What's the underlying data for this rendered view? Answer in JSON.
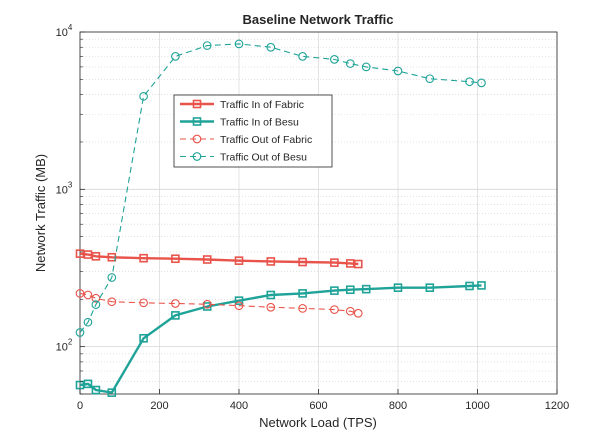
{
  "chart_data": {
    "type": "line",
    "title": "Baseline Network Traffic",
    "xlabel": "Network Load (TPS)",
    "ylabel": "Network Traffic (MB)",
    "xlim": [
      0,
      1200
    ],
    "ylim": [
      50,
      10000
    ],
    "yscale": "log",
    "grid": true,
    "minor_grid": true,
    "legend_position": "upper-left inside",
    "x_ticks": [
      "0",
      "200",
      "400",
      "600",
      "800",
      "1000",
      "1200"
    ],
    "y_ticks": [
      {
        "base": "10",
        "exp": "2"
      },
      {
        "base": "10",
        "exp": "3"
      },
      {
        "base": "10",
        "exp": "4"
      }
    ],
    "series": [
      {
        "name": "Traffic In of Fabric",
        "color": "#e8534a",
        "line": "solid",
        "marker": "square",
        "x": [
          0,
          20,
          40,
          80,
          160,
          240,
          320,
          400,
          480,
          560,
          640,
          680,
          700
        ],
        "y": [
          390,
          385,
          375,
          370,
          365,
          362,
          358,
          352,
          348,
          345,
          342,
          338,
          335
        ]
      },
      {
        "name": "Traffic In of Besu",
        "color": "#1fa398",
        "line": "solid",
        "marker": "square",
        "x": [
          0,
          20,
          40,
          80,
          160,
          240,
          320,
          400,
          480,
          560,
          640,
          680,
          720,
          800,
          880,
          980,
          1010
        ],
        "y": [
          57,
          58,
          53,
          51,
          113,
          158,
          180,
          196,
          213,
          218,
          227,
          230,
          232,
          237,
          237,
          243,
          245
        ]
      },
      {
        "name": "Traffic Out of Fabric",
        "color": "#e8534a",
        "line": "dashed",
        "marker": "circle",
        "x": [
          0,
          20,
          40,
          80,
          160,
          240,
          320,
          400,
          480,
          560,
          640,
          680,
          700
        ],
        "y": [
          218,
          213,
          203,
          193,
          190,
          188,
          186,
          182,
          178,
          175,
          172,
          168,
          163
        ]
      },
      {
        "name": "Traffic Out of Besu",
        "color": "#1fa398",
        "line": "dashed",
        "marker": "circle",
        "x": [
          0,
          20,
          40,
          80,
          160,
          240,
          320,
          400,
          480,
          560,
          640,
          680,
          720,
          800,
          880,
          980,
          1010
        ],
        "y": [
          123,
          143,
          185,
          275,
          3900,
          7000,
          8200,
          8400,
          8000,
          7000,
          6700,
          6300,
          6000,
          5650,
          5050,
          4830,
          4750
        ]
      }
    ]
  }
}
